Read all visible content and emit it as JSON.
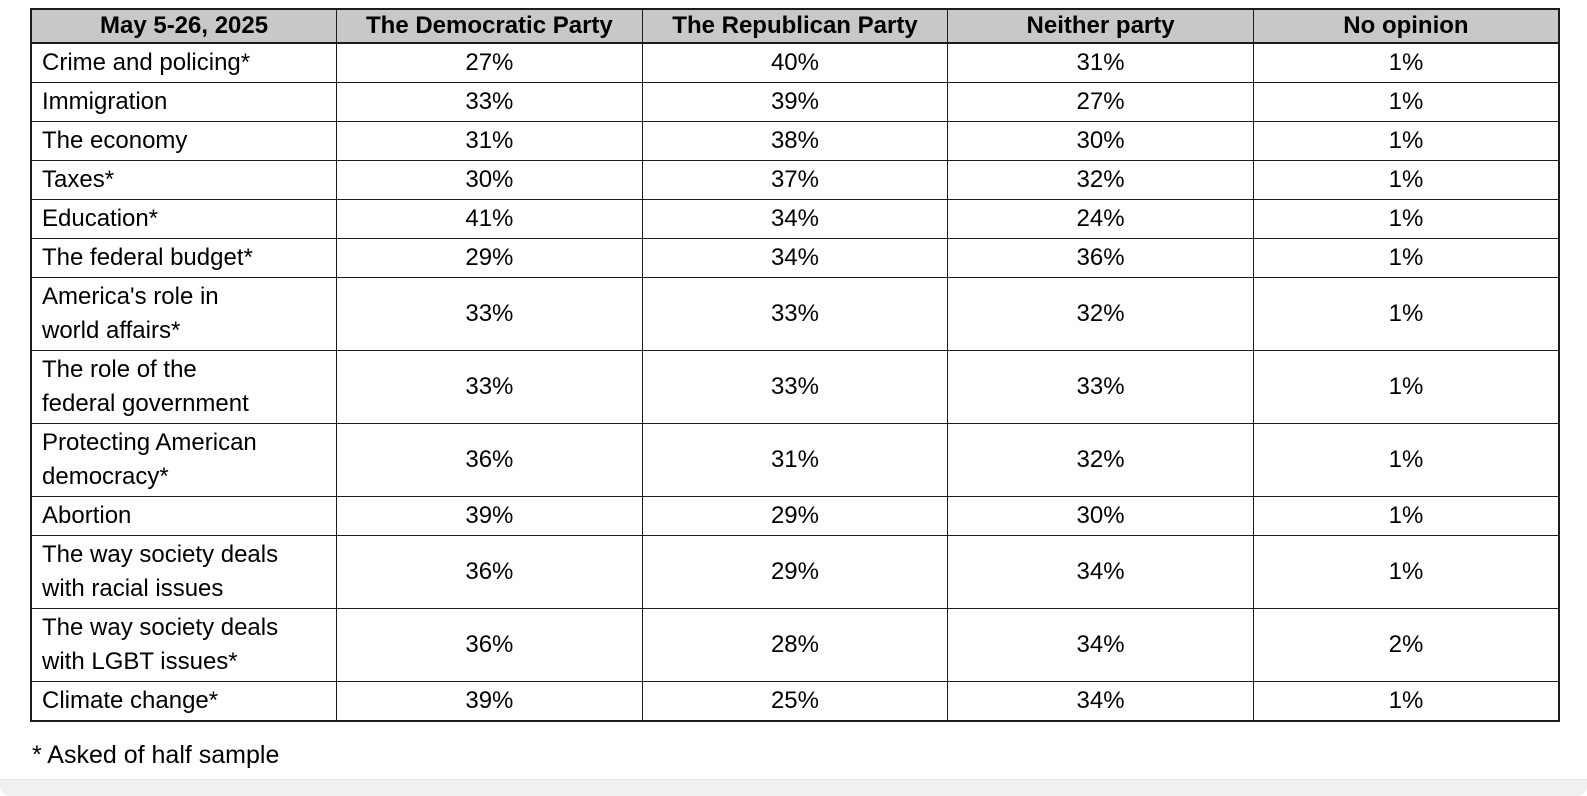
{
  "chart_data": {
    "type": "table",
    "title": "May 5-26, 2025",
    "columns": [
      "May 5-26, 2025",
      "The Democratic Party",
      "The Republican Party",
      "Neither party",
      "No opinion"
    ],
    "rows": [
      {
        "label": "Crime and policing*",
        "values": [
          "27%",
          "40%",
          "31%",
          "1%"
        ]
      },
      {
        "label": "Immigration",
        "values": [
          "33%",
          "39%",
          "27%",
          "1%"
        ]
      },
      {
        "label": "The economy",
        "values": [
          "31%",
          "38%",
          "30%",
          "1%"
        ]
      },
      {
        "label": "Taxes*",
        "values": [
          "30%",
          "37%",
          "32%",
          "1%"
        ]
      },
      {
        "label": "Education*",
        "values": [
          "41%",
          "34%",
          "24%",
          "1%"
        ]
      },
      {
        "label": "The federal budget*",
        "values": [
          "29%",
          "34%",
          "36%",
          "1%"
        ]
      },
      {
        "label": "America's role in\nworld affairs*",
        "values": [
          "33%",
          "33%",
          "32%",
          "1%"
        ]
      },
      {
        "label": "The role of the\nfederal government",
        "values": [
          "33%",
          "33%",
          "33%",
          "1%"
        ]
      },
      {
        "label": "Protecting American\ndemocracy*",
        "values": [
          "36%",
          "31%",
          "32%",
          "1%"
        ]
      },
      {
        "label": "Abortion",
        "values": [
          "39%",
          "29%",
          "30%",
          "1%"
        ]
      },
      {
        "label": "The way society deals\nwith racial issues",
        "values": [
          "36%",
          "29%",
          "34%",
          "1%"
        ]
      },
      {
        "label": "The way society deals\nwith LGBT issues*",
        "values": [
          "36%",
          "28%",
          "34%",
          "2%"
        ]
      },
      {
        "label": "Climate change*",
        "values": [
          "39%",
          "25%",
          "34%",
          "1%"
        ]
      }
    ],
    "footnote": "* Asked of half sample",
    "layout": {
      "grid": "on",
      "header_position": "top"
    }
  },
  "colors": {
    "header_background": "#c8c8c8",
    "border": "#1c1c1c",
    "text": "#000000",
    "page_background": "#ffffff",
    "window_strip": "#f0f0f1"
  }
}
